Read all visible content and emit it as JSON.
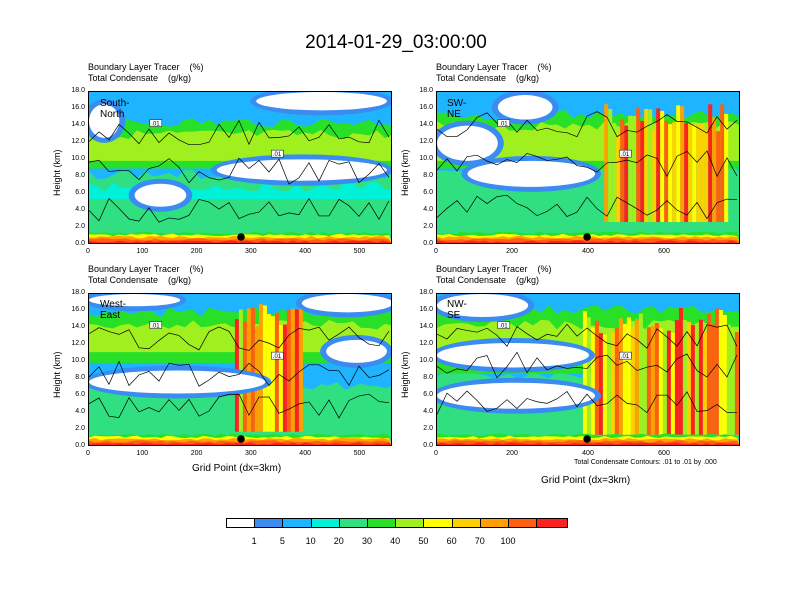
{
  "title": "2014-01-29_03:00:00",
  "panel_title_line1": "Boundary Layer Tracer    (%)",
  "panel_title_line2": "Total Condensate    (g/kg)",
  "y_axis_label": "Height (km)",
  "x_axis_label": "Grid Point (dx=3km)",
  "contour_note": "Total Condensate Contours: .01 to .01 by .000",
  "contour_label": ".01",
  "chart_data": [
    {
      "type": "heatmap",
      "name": "South-North",
      "xlim": [
        0,
        560
      ],
      "ylim": [
        0,
        18
      ],
      "xticks": [
        "0",
        "100",
        "200",
        "300",
        "400",
        "500"
      ],
      "yticks": [
        "0.0",
        "2.0",
        "4.0",
        "6.0",
        "8.0",
        "10.0",
        "12.0",
        "14.0",
        "16.0",
        "18.0"
      ],
      "marker_x": 280
    },
    {
      "type": "heatmap",
      "name": "SW-NE",
      "xlim": [
        0,
        800
      ],
      "ylim": [
        0,
        18
      ],
      "xticks": [
        "0",
        "200",
        "400",
        "600"
      ],
      "yticks": [
        "0.0",
        "2.0",
        "4.0",
        "6.0",
        "8.0",
        "10.0",
        "12.0",
        "14.0",
        "16.0",
        "18.0"
      ],
      "marker_x": 395
    },
    {
      "type": "heatmap",
      "name": "West-East",
      "xlim": [
        0,
        560
      ],
      "ylim": [
        0,
        18
      ],
      "xticks": [
        "0",
        "100",
        "200",
        "300",
        "400",
        "500"
      ],
      "yticks": [
        "0.0",
        "2.0",
        "4.0",
        "6.0",
        "8.0",
        "10.0",
        "12.0",
        "14.0",
        "16.0",
        "18.0"
      ],
      "marker_x": 280
    },
    {
      "type": "heatmap",
      "name": "NW-SE",
      "xlim": [
        0,
        800
      ],
      "ylim": [
        0,
        18
      ],
      "xticks": [
        "0",
        "200",
        "400",
        "600"
      ],
      "yticks": [
        "0.0",
        "2.0",
        "4.0",
        "6.0",
        "8.0",
        "10.0",
        "12.0",
        "14.0",
        "16.0",
        "18.0"
      ],
      "marker_x": 395
    }
  ],
  "colorbar": {
    "levels": [
      "1",
      "5",
      "10",
      "20",
      "30",
      "40",
      "50",
      "60",
      "70",
      "100"
    ],
    "colors": [
      "#ffffff",
      "#3a8cf0",
      "#1fb4ff",
      "#00f0d8",
      "#30e080",
      "#28e028",
      "#a0f020",
      "#ffff00",
      "#ffd000",
      "#ffa000",
      "#ff6010",
      "#ff2020"
    ]
  }
}
